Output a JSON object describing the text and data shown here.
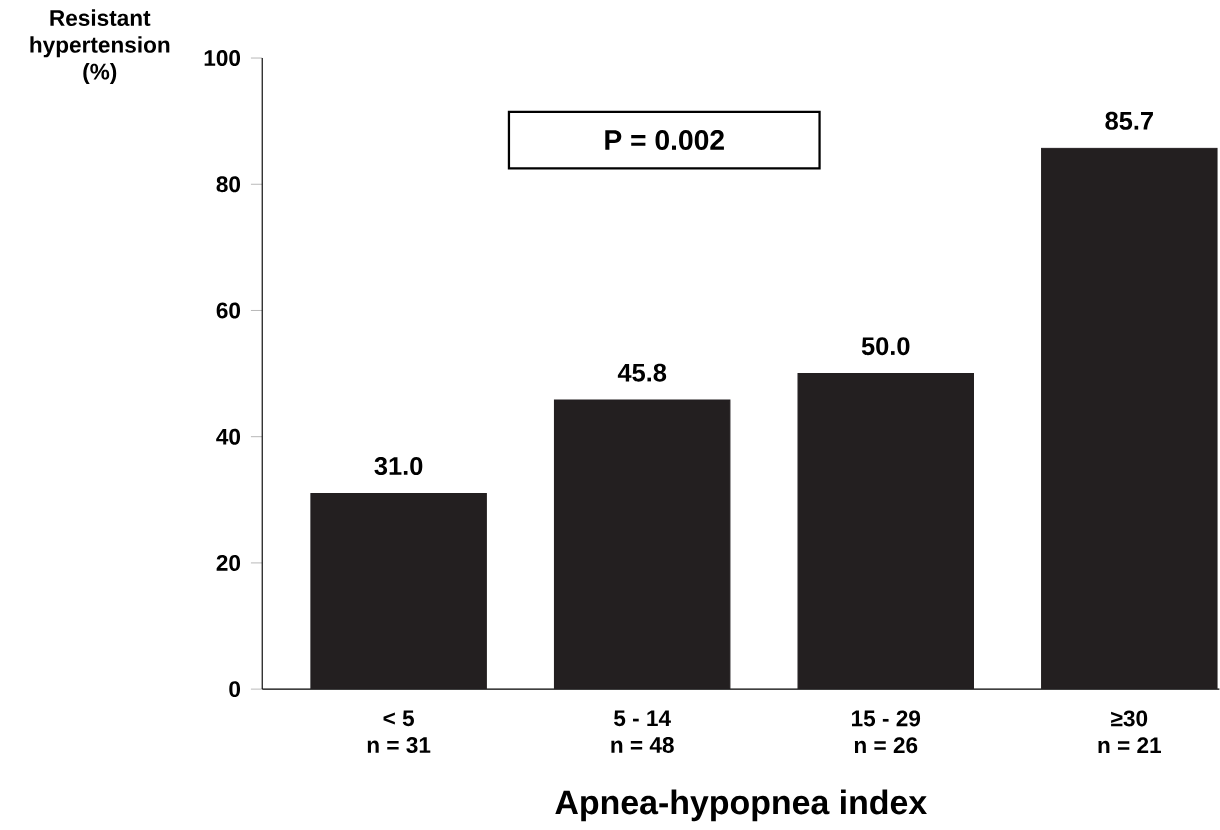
{
  "chart_data": {
    "type": "bar",
    "xlabel": "Apnea-hypopnea index",
    "ylabel": "Resistant hypertension (%)",
    "categories": [
      "< 5\nn = 31",
      "5 - 14\nn = 48",
      "15 - 29\nn = 26",
      "≥30\nn = 21"
    ],
    "values": [
      31.0,
      45.8,
      50.0,
      85.7
    ],
    "color": "#231f20",
    "ylim": [
      0,
      100
    ],
    "yticks": [
      0,
      20,
      40,
      60,
      80,
      100
    ],
    "data_labels": true,
    "value_labels": [
      "31.0",
      "45.8",
      "50.0",
      "85.7"
    ],
    "annotations": [
      "P = 0.002"
    ]
  }
}
